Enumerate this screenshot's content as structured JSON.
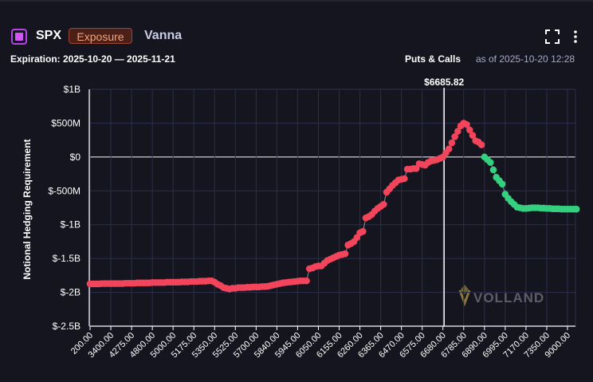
{
  "header": {
    "symbol": "SPX",
    "badge": "Exposure",
    "metric": "Vanna",
    "expiration": "Expiration: 2025-10-20 — 2025-11-21",
    "option_types": "Puts & Calls",
    "as_of": "as of 2025-10-20 12:28"
  },
  "chart_data": {
    "type": "scatter-line",
    "y_label": "Notional Hedging Requirement",
    "watermark": "VOLLAND",
    "spot": {
      "value": 6685.82,
      "label": "$6685.82"
    },
    "grid": true,
    "ylim": [
      -2500000000,
      1000000000
    ],
    "yticks": [
      {
        "value": 1000000000,
        "label": "$1B"
      },
      {
        "value": 500000000,
        "label": "$500M"
      },
      {
        "value": 0,
        "label": "$0"
      },
      {
        "value": -500000000,
        "label": "$-500M"
      },
      {
        "value": -1000000000,
        "label": "$-1B"
      },
      {
        "value": -1500000000,
        "label": "$-1.5B"
      },
      {
        "value": -2000000000,
        "label": "$-2B"
      },
      {
        "value": -2500000000,
        "label": "$-2.5B"
      }
    ],
    "categories": [
      "200.00",
      null,
      null,
      null,
      null,
      null,
      null,
      "3400.00",
      null,
      null,
      null,
      null,
      null,
      null,
      "4275.00",
      null,
      null,
      null,
      null,
      null,
      null,
      "4800.00",
      null,
      null,
      null,
      null,
      null,
      null,
      "5000.00",
      null,
      null,
      null,
      null,
      null,
      null,
      "5175.00",
      null,
      null,
      null,
      null,
      null,
      null,
      "5350.00",
      null,
      null,
      null,
      null,
      null,
      null,
      "5525.00",
      null,
      null,
      null,
      null,
      null,
      null,
      "5700.00",
      null,
      null,
      null,
      null,
      null,
      null,
      "5840.00",
      null,
      null,
      null,
      null,
      null,
      null,
      "5945.00",
      null,
      null,
      null,
      null,
      null,
      null,
      "6050.00",
      null,
      null,
      null,
      null,
      null,
      null,
      "6155.00",
      null,
      null,
      null,
      null,
      null,
      null,
      "6260.00",
      null,
      null,
      null,
      null,
      null,
      null,
      "6365.00",
      null,
      null,
      null,
      null,
      null,
      null,
      "6470.00",
      null,
      null,
      null,
      null,
      null,
      null,
      "6575.00",
      null,
      null,
      null,
      null,
      null,
      null,
      "6680.00",
      null,
      null,
      null,
      null,
      null,
      null,
      "6785.00",
      null,
      null,
      null,
      null,
      null,
      null,
      "6890.00",
      null,
      null,
      null,
      null,
      null,
      null,
      "6995.00",
      null,
      null,
      null,
      null,
      null,
      null,
      "7170.00",
      null,
      null,
      null,
      null,
      null,
      null,
      "7350.00",
      null,
      null,
      null,
      null,
      null,
      null,
      "9000.00",
      null,
      null,
      null
    ],
    "series": [
      {
        "color": "#f2455c",
        "values": [
          -1875000000.0,
          -1875000000.0,
          -1875000000.0,
          -1875000000.0,
          -1870000000.0,
          -1870000000.0,
          -1870000000.0,
          -1870000000.0,
          -1870000000.0,
          -1870000000.0,
          -1870000000.0,
          -1870000000.0,
          -1865000000.0,
          -1865000000.0,
          -1865000000.0,
          -1865000000.0,
          -1860000000.0,
          -1860000000.0,
          -1860000000.0,
          -1860000000.0,
          -1860000000.0,
          -1855000000.0,
          -1855000000.0,
          -1855000000.0,
          -1855000000.0,
          -1855000000.0,
          -1850000000.0,
          -1850000000.0,
          -1850000000.0,
          -1850000000.0,
          -1850000000.0,
          -1845000000.0,
          -1845000000.0,
          -1845000000.0,
          -1840000000.0,
          -1840000000.0,
          -1840000000.0,
          -1835000000.0,
          -1835000000.0,
          -1835000000.0,
          -1830000000.0,
          -1830000000.0,
          -1850000000.0,
          -1880000000.0,
          -1900000000.0,
          -1930000000.0,
          -1940000000.0,
          -1950000000.0,
          -1940000000.0,
          -1940000000.0,
          -1930000000.0,
          -1930000000.0,
          -1930000000.0,
          -1925000000.0,
          -1925000000.0,
          -1920000000.0,
          -1920000000.0,
          -1920000000.0,
          -1915000000.0,
          -1915000000.0,
          -1910000000.0,
          -1900000000.0,
          -1890000000.0,
          -1880000000.0,
          -1870000000.0,
          -1860000000.0,
          -1855000000.0,
          -1850000000.0,
          -1845000000.0,
          -1840000000.0,
          -1835000000.0,
          -1830000000.0,
          -1830000000.0,
          -1830000000.0,
          -1650000000.0,
          -1640000000.0,
          -1620000000.0,
          -1610000000.0,
          -1610000000.0,
          -1570000000.0,
          -1530000000.0,
          -1510000000.0,
          -1490000000.0,
          -1470000000.0,
          -1450000000.0,
          -1440000000.0,
          -1430000000.0,
          -1300000000.0,
          -1280000000.0,
          -1250000000.0,
          -1190000000.0,
          -1120000000.0,
          -1100000000.0,
          -900000000.0,
          -880000000.0,
          -850000000.0,
          -800000000.0,
          -760000000.0,
          -730000000.0,
          -700000000.0,
          -520000000.0,
          -470000000.0,
          -420000000.0,
          -380000000.0,
          -340000000.0,
          -330000000.0,
          -320000000.0,
          -180000000.0,
          -180000000.0,
          -170000000.0,
          -170000000.0,
          -100000000.0,
          -110000000.0,
          -120000000.0,
          -80000000.0,
          -60000000.0,
          -50000000.0,
          -40000000.0,
          -20000000.0,
          0,
          60000000.0,
          120000000.0,
          210000000.0,
          300000000.0,
          380000000.0,
          460000000.0,
          500000000.0,
          480000000.0,
          400000000.0,
          320000000.0,
          240000000.0,
          220000000.0,
          180000000.0,
          null,
          null,
          null,
          null,
          null,
          null,
          null,
          null,
          null,
          null,
          null,
          null,
          null,
          null,
          null,
          null,
          null,
          null,
          null,
          null,
          null,
          null,
          null,
          null,
          null,
          null,
          null,
          null,
          null,
          null,
          null,
          null
        ]
      },
      {
        "color": "#35d07f",
        "values": [
          null,
          null,
          null,
          null,
          null,
          null,
          null,
          null,
          null,
          null,
          null,
          null,
          null,
          null,
          null,
          null,
          null,
          null,
          null,
          null,
          null,
          null,
          null,
          null,
          null,
          null,
          null,
          null,
          null,
          null,
          null,
          null,
          null,
          null,
          null,
          null,
          null,
          null,
          null,
          null,
          null,
          null,
          null,
          null,
          null,
          null,
          null,
          null,
          null,
          null,
          null,
          null,
          null,
          null,
          null,
          null,
          null,
          null,
          null,
          null,
          null,
          null,
          null,
          null,
          null,
          null,
          null,
          null,
          null,
          null,
          null,
          null,
          null,
          null,
          null,
          null,
          null,
          null,
          null,
          null,
          null,
          null,
          null,
          null,
          null,
          null,
          null,
          null,
          null,
          null,
          null,
          null,
          null,
          null,
          null,
          null,
          null,
          null,
          null,
          null,
          null,
          null,
          null,
          null,
          null,
          null,
          null,
          null,
          null,
          null,
          null,
          null,
          null,
          null,
          null,
          null,
          null,
          null,
          null,
          null,
          null,
          null,
          null,
          null,
          null,
          null,
          null,
          null,
          null,
          null,
          null,
          null,
          null,
          0,
          -40000000.0,
          -80000000.0,
          -190000000.0,
          -300000000.0,
          -350000000.0,
          -400000000.0,
          -550000000.0,
          -610000000.0,
          -660000000.0,
          -700000000.0,
          -740000000.0,
          -750000000.0,
          -760000000.0,
          -760000000.0,
          -755000000.0,
          -750000000.0,
          -750000000.0,
          -750000000.0,
          -755000000.0,
          -755000000.0,
          -760000000.0,
          -760000000.0,
          -765000000.0,
          -765000000.0,
          -765000000.0,
          -770000000.0,
          -770000000.0,
          -770000000.0,
          -770000000.0,
          -770000000.0,
          -770000000.0
        ]
      }
    ]
  }
}
